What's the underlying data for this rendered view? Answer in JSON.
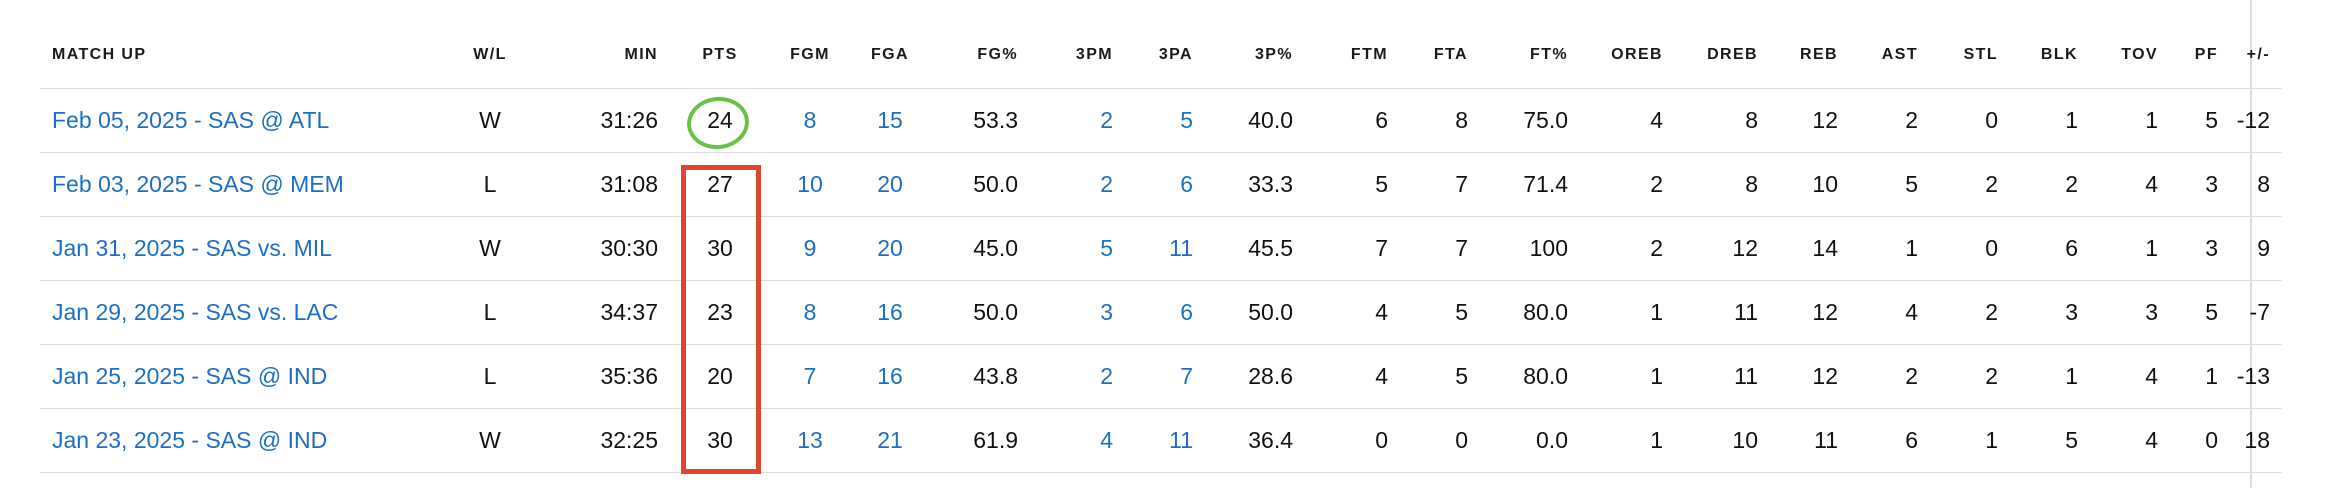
{
  "columns": [
    "MATCH UP",
    "W/L",
    "MIN",
    "PTS",
    "FGM",
    "FGA",
    "FG%",
    "3PM",
    "3PA",
    "3P%",
    "FTM",
    "FTA",
    "FT%",
    "OREB",
    "DREB",
    "REB",
    "AST",
    "STL",
    "BLK",
    "TOV",
    "PF",
    "+/-"
  ],
  "rows": [
    {
      "matchup": "Feb 05, 2025 - SAS @ ATL",
      "wl": "W",
      "min": "31:26",
      "pts": "24",
      "fgm": "8",
      "fga": "15",
      "fgp": "53.3",
      "tpm": "2",
      "tpa": "5",
      "tpp": "40.0",
      "ftm": "6",
      "fta": "8",
      "ftp": "75.0",
      "oreb": "4",
      "dreb": "8",
      "reb": "12",
      "ast": "2",
      "stl": "0",
      "blk": "1",
      "tov": "1",
      "pf": "5",
      "pm": "-12"
    },
    {
      "matchup": "Feb 03, 2025 - SAS @ MEM",
      "wl": "L",
      "min": "31:08",
      "pts": "27",
      "fgm": "10",
      "fga": "20",
      "fgp": "50.0",
      "tpm": "2",
      "tpa": "6",
      "tpp": "33.3",
      "ftm": "5",
      "fta": "7",
      "ftp": "71.4",
      "oreb": "2",
      "dreb": "8",
      "reb": "10",
      "ast": "5",
      "stl": "2",
      "blk": "2",
      "tov": "4",
      "pf": "3",
      "pm": "8"
    },
    {
      "matchup": "Jan 31, 2025 - SAS vs. MIL",
      "wl": "W",
      "min": "30:30",
      "pts": "30",
      "fgm": "9",
      "fga": "20",
      "fgp": "45.0",
      "tpm": "5",
      "tpa": "11",
      "tpp": "45.5",
      "ftm": "7",
      "fta": "7",
      "ftp": "100",
      "oreb": "2",
      "dreb": "12",
      "reb": "14",
      "ast": "1",
      "stl": "0",
      "blk": "6",
      "tov": "1",
      "pf": "3",
      "pm": "9"
    },
    {
      "matchup": "Jan 29, 2025 - SAS vs. LAC",
      "wl": "L",
      "min": "34:37",
      "pts": "23",
      "fgm": "8",
      "fga": "16",
      "fgp": "50.0",
      "tpm": "3",
      "tpa": "6",
      "tpp": "50.0",
      "ftm": "4",
      "fta": "5",
      "ftp": "80.0",
      "oreb": "1",
      "dreb": "11",
      "reb": "12",
      "ast": "4",
      "stl": "2",
      "blk": "3",
      "tov": "3",
      "pf": "5",
      "pm": "-7"
    },
    {
      "matchup": "Jan 25, 2025 - SAS @ IND",
      "wl": "L",
      "min": "35:36",
      "pts": "20",
      "fgm": "7",
      "fga": "16",
      "fgp": "43.8",
      "tpm": "2",
      "tpa": "7",
      "tpp": "28.6",
      "ftm": "4",
      "fta": "5",
      "ftp": "80.0",
      "oreb": "1",
      "dreb": "11",
      "reb": "12",
      "ast": "2",
      "stl": "2",
      "blk": "1",
      "tov": "4",
      "pf": "1",
      "pm": "-13"
    },
    {
      "matchup": "Jan 23, 2025 - SAS @ IND",
      "wl": "W",
      "min": "32:25",
      "pts": "30",
      "fgm": "13",
      "fga": "21",
      "fgp": "61.9",
      "tpm": "4",
      "tpa": "11",
      "tpp": "36.4",
      "ftm": "0",
      "fta": "0",
      "ftp": "0.0",
      "oreb": "1",
      "dreb": "10",
      "reb": "11",
      "ast": "6",
      "stl": "1",
      "blk": "5",
      "tov": "4",
      "pf": "0",
      "pm": "18"
    }
  ],
  "colors": {
    "link": "#1d6fc4",
    "highlight_box": "#e0452f",
    "highlight_circle": "#6cc04a",
    "row_divider": "#dddddd"
  }
}
